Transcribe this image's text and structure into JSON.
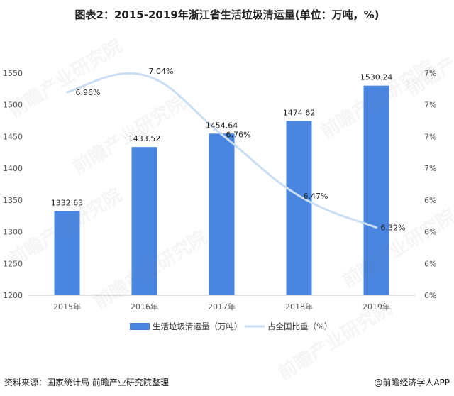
{
  "title": "图表2：2015-2019年浙江省生活垃圾清运量(单位：万吨，%)",
  "source": "资料来源：国家统计局 前瞻产业研究院整理",
  "brand": "@前瞻经济学人APP",
  "watermark": "前瞻产业研究院",
  "colors": {
    "bar": "#4a86e0",
    "line": "#c9def5",
    "grid": "#e6e6e6"
  },
  "chart_data": {
    "type": "bar",
    "categories": [
      "2015年",
      "2016年",
      "2017年",
      "2018年",
      "2019年"
    ],
    "series": [
      {
        "name": "生活垃圾清运量（万吨）",
        "type": "bar",
        "axis": "left",
        "values": [
          1332.63,
          1433.52,
          1454.64,
          1474.62,
          1530.24
        ],
        "labels": [
          "1332.63",
          "1433.52",
          "1454.64",
          "1474.62",
          "1530.24"
        ]
      },
      {
        "name": "占全国比重（%）",
        "type": "line",
        "axis": "right",
        "values": [
          6.96,
          7.04,
          6.76,
          6.47,
          6.32
        ],
        "labels": [
          "6.96%",
          "7.04%",
          "6.76%",
          "6.47%",
          "6.32%"
        ]
      }
    ],
    "left_axis": {
      "ylim": [
        1200,
        1550
      ],
      "ticks": [
        1200,
        1250,
        1300,
        1350,
        1400,
        1450,
        1500,
        1550
      ]
    },
    "right_axis": {
      "ylim": [
        6.0,
        7.05
      ],
      "tick_labels": [
        "6%",
        "6%",
        "6%",
        "6%",
        "7%",
        "7%",
        "7%",
        "7%"
      ]
    },
    "legend_position": "bottom-center",
    "grid": false
  }
}
